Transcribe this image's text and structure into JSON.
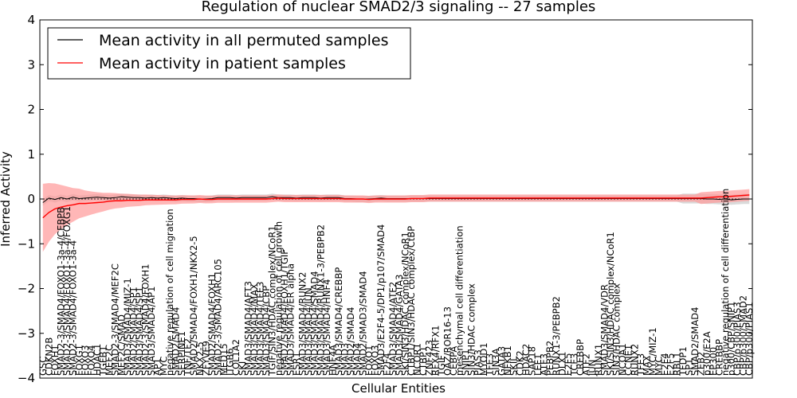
{
  "chart_data": {
    "type": "line",
    "title": "Regulation of nuclear SMAD2/3 signaling -- 27 samples",
    "xlabel": "Cellular Entities",
    "ylabel": "Inferred Activity",
    "ylim": [
      -4,
      4
    ],
    "yticks": [
      "−4",
      "−3",
      "−2",
      "−1",
      "0",
      "1",
      "2",
      "3",
      "4"
    ],
    "legend_position": "top-left",
    "categories": [
      "GSC",
      "CDKN2B",
      "FOXH1",
      "SMAD2-3/SMAD4/FOXO1-3a-4/CEBPB",
      "SMAD2-3/SMAD4/FOXO1-3a-4/FOXG1",
      "SMAD2-3/SMAD4/FOXO1-3a-4",
      "FOXG1",
      "FOXO3",
      "FOXO4",
      "HDAC1",
      "TGFB1",
      "MEF2C",
      "SMAD2-3/SMAD4/MEF2C",
      "MEF2C/SMAD",
      "SMAD3/SMAD4/MIZ-1",
      "SMAD2/SMAD4/SP1",
      "SMAD3/SMAD4/SP1",
      "SMAD2-3/SMAD4/FOXH1",
      "SMAD3/SMAD4/AP1",
      "AP1",
      "MYC",
      "negative regulation of cell migration",
      "SMAD2/SMAD4",
      "SERPINE1",
      "TNF/TF2",
      "SMAD2/SMAD4/FOXH1/NKX2-5",
      "NKX2-5",
      "ZFYVE9",
      "SMAD2/SMAD4/FOXH1",
      "SMAD2-3/SMAD4/ARC105",
      "MED15",
      "ITGB6",
      "COL1A2",
      "SKI",
      "SMAD3/SMAD4/AFT3",
      "SMAD3/SMAD4/MAX",
      "SMAD3/SMAD4/TFE3",
      "SMAD3/SMAD4/CBP",
      "TGIF/SIN3/HDAC complex/NCoR1",
      "negative regulation of cell growth",
      "SMAD2/SMAD4/FOXH1/TGIF",
      "SMAD3/SMAD4/ER alpha",
      "ESR1",
      "SMAD3/SMAD4/RUNX2",
      "SMAD3/SMAD4/JUN",
      "SMAD3/SMAD4/SMAD4",
      "SMAD3/SMAD4/RUNX1-3/PEBPB2",
      "SMAD3/SMAD4/HNF4",
      "HNF4A",
      "SMAD3/SMAD4/CREBBP",
      "SMAD3",
      "SMAD2/SMAD4",
      "SMAD4",
      "SMAD2/SMAD3/SMAD4",
      "FOXO1",
      "FOXO3",
      "SMAD3/E2F4-5/DP1/p107/SMAD4",
      "E2F4",
      "SMAD3/SMAD4/ATF2",
      "SMAD3/SMAD4/GATA3",
      "SKI/SIN3/HDAC complex/NCoR1",
      "CTBP1/SIN3/HDAC complex/CtBP",
      "NCOR1",
      "CTBP1",
      "ZNF423",
      "RFX4/RFX1",
      "TGIF",
      "OAZ/ROR16-13",
      "CEBPA",
      "mesenchymal cell differentiation",
      "SNIP1",
      "SIN3/HDAC complex",
      "PIAS3",
      "MYOD1",
      "TFE3",
      "SIN3A",
      "GATA3",
      "NFKB1",
      "SKIL",
      "CDK2",
      "HDAC2",
      "SAP18",
      "LEF1",
      "ATF3",
      "PEBPB2",
      "RUNX1-3/PEBPB2",
      "DLX1",
      "E2F5",
      "TCF3",
      "CREBBP",
      "ATF2",
      "JUN",
      "RUNX1",
      "SMAD3/SMAD4/VDR",
      "SKI/SIN3/HDAC complex/NCoR1",
      "SIN3/HDAC complex",
      "NCOA1",
      "CCNE1",
      "RUNX2",
      "TFE3",
      "MAX",
      "MYC/MIZ-1",
      "MYC",
      "E2F4",
      "E2F5",
      "RBL1",
      "TFDP1",
      "SP1",
      "SMAD2/SMAD4",
      "ZEB2",
      "p300/E2A",
      "EP300",
      "CREBBP",
      "negative regulation of cell differentiation",
      "p300/CBP/SNIP1",
      "CBP/p300/PIAS3",
      "CBP/p300/SMAD2",
      "CBP/p300/PIAS1"
    ],
    "series": [
      {
        "name": "Mean activity in all permuted samples",
        "color": "#000000",
        "values": [
          -0.08,
          0.02,
          -0.01,
          0.03,
          0.0,
          0.04,
          0.01,
          0.02,
          0.03,
          0.04,
          0.03,
          0.02,
          0.03,
          0.05,
          0.04,
          0.03,
          0.03,
          0.02,
          0.03,
          0.02,
          0.03,
          0.02,
          0.01,
          0.02,
          0.01,
          0.01,
          0.0,
          0.0,
          0.01,
          0.03,
          0.03,
          0.03,
          0.02,
          0.03,
          0.03,
          0.03,
          0.03,
          0.03,
          0.05,
          0.03,
          0.03,
          0.03,
          0.02,
          0.03,
          0.03,
          0.03,
          0.02,
          0.03,
          0.03,
          0.03,
          0.01,
          0.01,
          0.0,
          0.0,
          0.0,
          0.01,
          0.02,
          0.01,
          0.01,
          0.01,
          0.01,
          0.01,
          0.01,
          0.01,
          0.01,
          0.01,
          0.01,
          0.01,
          0.01,
          0.01,
          0.01,
          0.01,
          0.01,
          0.01,
          0.01,
          0.01,
          0.01,
          0.01,
          0.01,
          0.01,
          0.01,
          0.01,
          0.01,
          0.01,
          0.01,
          0.01,
          0.01,
          0.01,
          0.01,
          0.01,
          0.01,
          0.01,
          0.01,
          0.01,
          0.01,
          0.01,
          0.01,
          0.01,
          0.01,
          0.01,
          0.01,
          0.01,
          0.01,
          0.01,
          0.01,
          0.01,
          0.01,
          0.01,
          0.01,
          0.01,
          0.0,
          0.0,
          -0.01,
          0.0,
          -0.02,
          -0.01,
          0.0,
          0.0
        ]
      },
      {
        "name": "Mean activity in patient samples",
        "color": "#ff0000",
        "values": [
          -0.42,
          -0.3,
          -0.22,
          -0.18,
          -0.15,
          -0.13,
          -0.1,
          -0.1,
          -0.09,
          -0.08,
          -0.07,
          -0.05,
          -0.04,
          -0.04,
          -0.03,
          -0.03,
          -0.03,
          -0.02,
          -0.02,
          -0.02,
          -0.02,
          -0.02,
          -0.02,
          -0.01,
          -0.01,
          -0.01,
          0.0,
          -0.01,
          -0.01,
          0.0,
          0.0,
          0.0,
          0.0,
          0.0,
          0.0,
          0.0,
          0.0,
          0.0,
          0.01,
          0.02,
          0.01,
          0.01,
          0.01,
          0.01,
          0.01,
          0.01,
          0.01,
          0.01,
          0.01,
          0.01,
          0.0,
          0.0,
          0.0,
          0.0,
          -0.01,
          0.0,
          0.0,
          0.0,
          0.0,
          0.0,
          0.0,
          0.01,
          0.01,
          0.01,
          0.02,
          0.02,
          0.02,
          0.02,
          0.02,
          0.02,
          0.02,
          0.02,
          0.02,
          0.02,
          0.02,
          0.02,
          0.02,
          0.02,
          0.02,
          0.02,
          0.02,
          0.02,
          0.02,
          0.02,
          0.02,
          0.02,
          0.02,
          0.02,
          0.02,
          0.02,
          0.02,
          0.02,
          0.02,
          0.02,
          0.02,
          0.02,
          0.02,
          0.02,
          0.02,
          0.02,
          0.02,
          0.02,
          0.02,
          0.02,
          0.02,
          0.02,
          0.02,
          0.02,
          0.02,
          0.02,
          0.03,
          0.04,
          0.05,
          0.05,
          0.06,
          0.07,
          0.08,
          0.09
        ]
      }
    ]
  },
  "legend": {
    "permuted_label": "Mean activity in all permuted samples",
    "patient_label": "Mean activity in patient samples"
  },
  "colors": {
    "permuted_line": "#000000",
    "patient_line": "#ff0000",
    "patient_band": "#ff9999",
    "permuted_band": "#bbbbbb"
  }
}
